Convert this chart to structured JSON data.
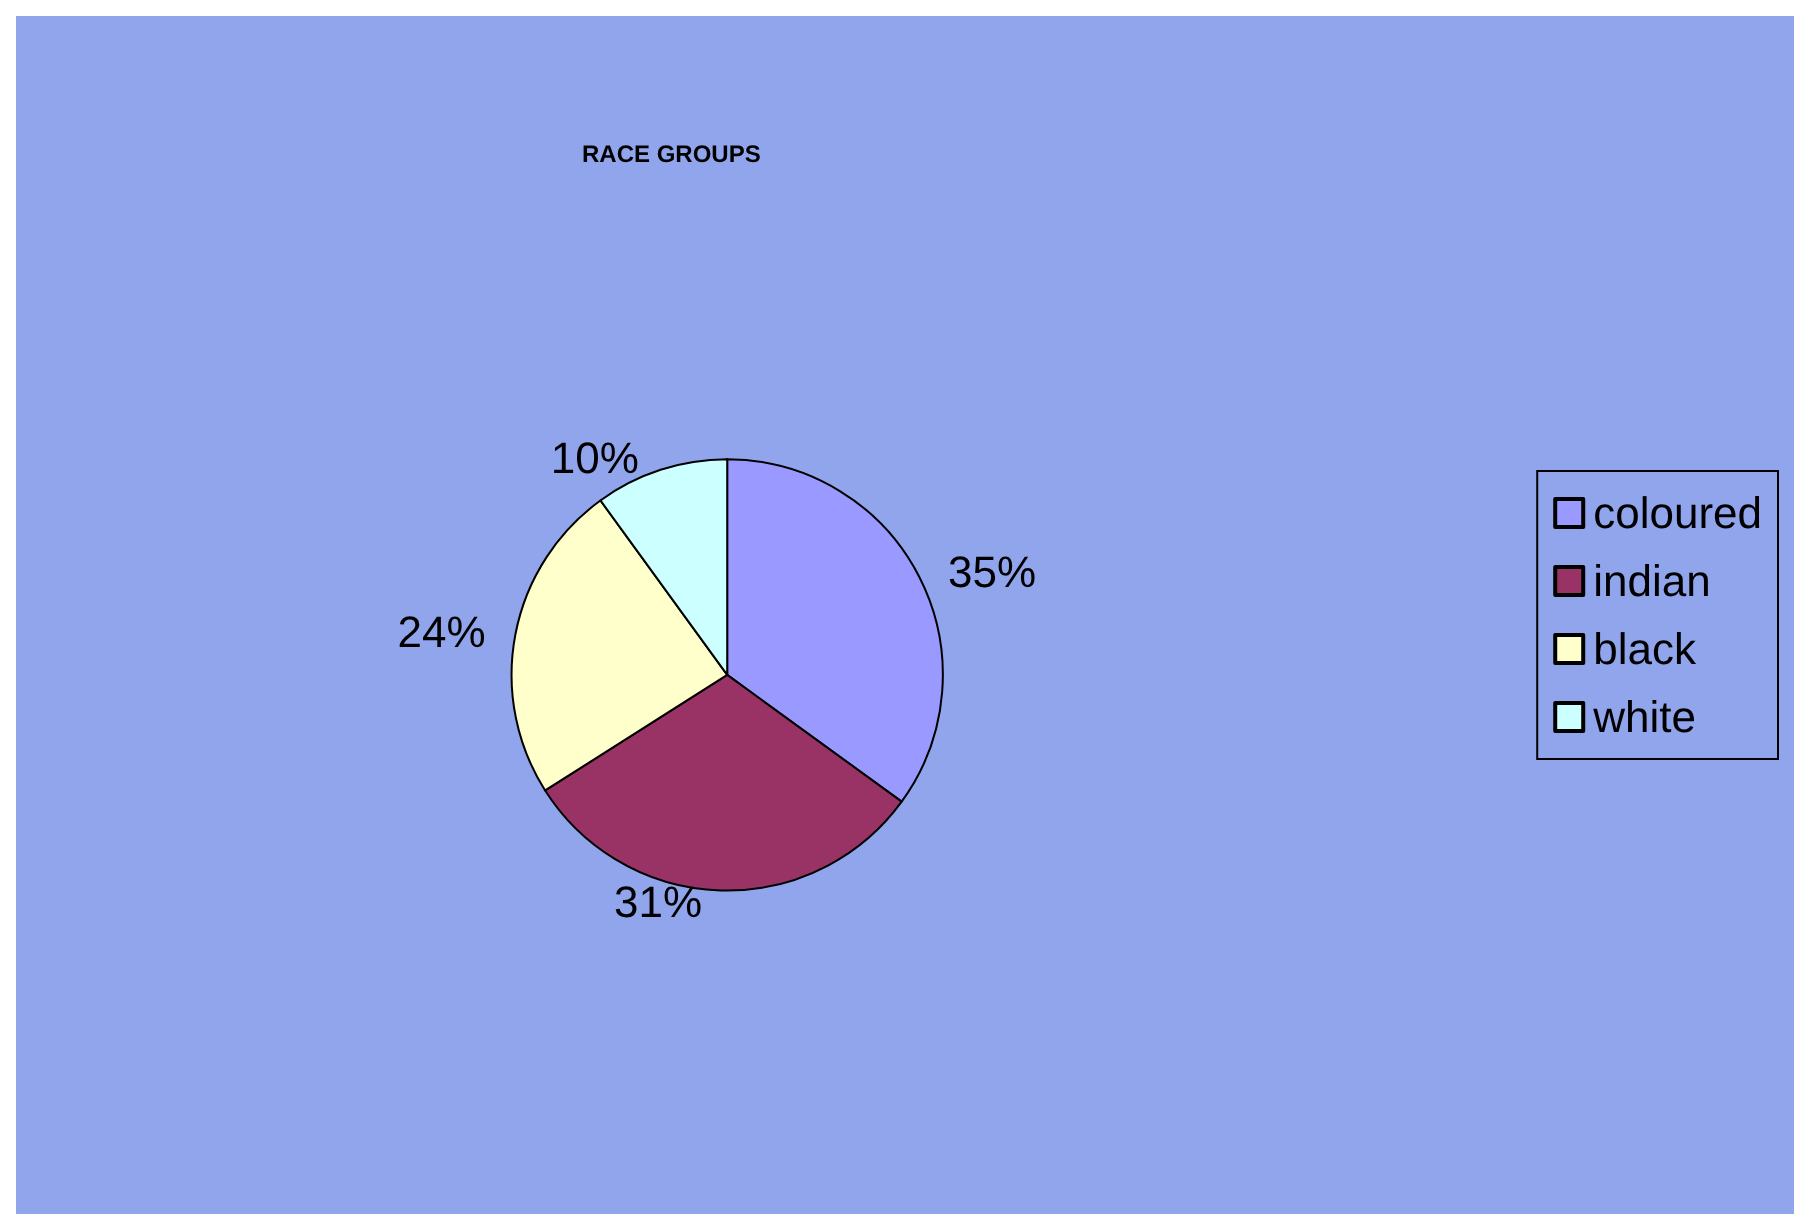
{
  "chart_data": {
    "type": "pie",
    "title": "RACE GROUPS",
    "categories": [
      "coloured",
      "indian",
      "black",
      "white"
    ],
    "values": [
      35,
      31,
      24,
      10
    ],
    "value_labels": [
      "35%",
      "31%",
      "24%",
      "10%"
    ],
    "colors": [
      "#9999ff",
      "#993366",
      "#ffffcc",
      "#ccffff"
    ],
    "legend": "right"
  }
}
